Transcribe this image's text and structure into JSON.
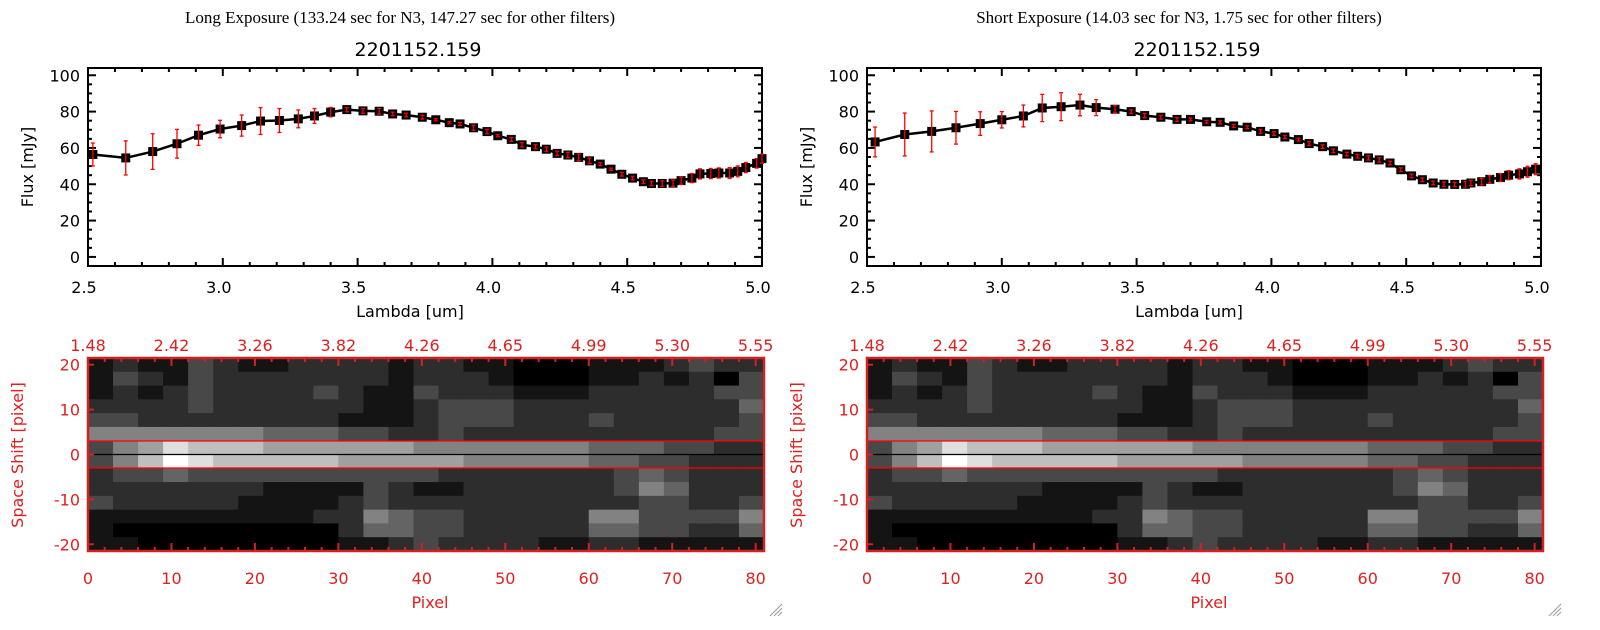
{
  "colors": {
    "axis_top": "#000000",
    "axis_bottom": "#d42020",
    "errorbar": "#ff0000",
    "marker": "#000000",
    "slit_line": "#ff0000"
  },
  "chart_data": [
    {
      "type": "line",
      "title": "Long Exposure (133.24 sec for N3, 147.27 sec for other filters)",
      "object": "2201152.159",
      "xlabel": "Lambda [um]",
      "ylabel": "Flux [mJy]",
      "xlim": [
        2.5,
        5.0
      ],
      "ylim": [
        -5,
        104
      ],
      "xticks": [
        "2.5",
        "3.0",
        "3.5",
        "4.0",
        "4.5",
        "5.0"
      ],
      "yticks": [
        "0",
        "20",
        "40",
        "60",
        "80",
        "100"
      ],
      "x": [
        2.518,
        2.64,
        2.74,
        2.83,
        2.91,
        2.99,
        3.07,
        3.14,
        3.21,
        3.28,
        3.34,
        3.4,
        3.46,
        3.52,
        3.58,
        3.63,
        3.68,
        3.74,
        3.79,
        3.84,
        3.88,
        3.93,
        3.98,
        4.02,
        4.07,
        4.11,
        4.16,
        4.2,
        4.24,
        4.28,
        4.32,
        4.36,
        4.4,
        4.44,
        4.48,
        4.52,
        4.56,
        4.59,
        4.63,
        4.67,
        4.7,
        4.74,
        4.77,
        4.81,
        4.84,
        4.88,
        4.91,
        4.94,
        4.98,
        5.0
      ],
      "y": [
        56.4,
        54.5,
        58,
        62.3,
        67,
        70.4,
        72.3,
        74.8,
        75.1,
        76,
        77.6,
        79.7,
        81.1,
        80.4,
        80.2,
        78.7,
        78.1,
        76.9,
        75.5,
        73.9,
        73.2,
        71.1,
        69,
        66.7,
        64.7,
        61.7,
        60.7,
        59.3,
        57,
        56.1,
        54.8,
        52.9,
        51.1,
        48.3,
        45.5,
        43.4,
        41.4,
        40.4,
        40.4,
        40.6,
        42,
        43.4,
        45.7,
        45.9,
        46.2,
        46.2,
        47.1,
        49.2,
        51.5,
        54.1
      ],
      "yerr": [
        6.3,
        9.4,
        9.8,
        7.9,
        5.6,
        4.8,
        5.8,
        7.4,
        6.6,
        4.9,
        4.1,
        2.6,
        1.2,
        1.3,
        1.5,
        1,
        1,
        1,
        0.6,
        0.6,
        0.8,
        1.4,
        1.2,
        0.6,
        1,
        1.2,
        1.2,
        1.2,
        1.2,
        1.5,
        1.8,
        1.5,
        0.8,
        0.6,
        1,
        1,
        1,
        1.2,
        1.5,
        1.8,
        2,
        2.5,
        2.8,
        2.8,
        2.8,
        3,
        3,
        2.8,
        2.6,
        2.5
      ]
    },
    {
      "type": "line",
      "title": "Short Exposure (14.03 sec for N3, 1.75 sec for other filters)",
      "object": "2201152.159",
      "xlabel": "Lambda [um]",
      "ylabel": "Flux [mJy]",
      "xlim": [
        2.5,
        5.0
      ],
      "ylim": [
        -5,
        104
      ],
      "xticks": [
        "2.5",
        "3.0",
        "3.5",
        "4.0",
        "4.5",
        "5.0"
      ],
      "yticks": [
        "0",
        "20",
        "40",
        "60",
        "80",
        "100"
      ],
      "x": [
        2.53,
        2.64,
        2.74,
        2.83,
        2.92,
        3.0,
        3.08,
        3.15,
        3.22,
        3.29,
        3.35,
        3.42,
        3.48,
        3.53,
        3.59,
        3.65,
        3.7,
        3.76,
        3.81,
        3.86,
        3.91,
        3.96,
        4.01,
        4.05,
        4.1,
        4.14,
        4.19,
        4.23,
        4.28,
        4.32,
        4.36,
        4.4,
        4.44,
        4.48,
        4.52,
        4.56,
        4.6,
        4.64,
        4.68,
        4.72,
        4.74,
        4.78,
        4.81,
        4.85,
        4.88,
        4.92,
        4.95,
        4.98
      ],
      "y": [
        63.3,
        67.4,
        69.1,
        71.1,
        73.4,
        75.5,
        77.6,
        82,
        82.7,
        83.6,
        82.2,
        81.3,
        80,
        77.8,
        76.9,
        75.7,
        75.7,
        74.4,
        74.1,
        72.1,
        71.4,
        69.1,
        67.9,
        66,
        64.6,
        62.4,
        60.7,
        58.4,
        56.6,
        55.4,
        54.5,
        53.4,
        51.7,
        48,
        44.6,
        42.5,
        40.7,
        40,
        39.9,
        40,
        40.7,
        41.4,
        42.7,
        43.7,
        45,
        45.7,
        46.9,
        48.3
      ],
      "yerr": [
        8.2,
        11.8,
        11.3,
        9,
        6.5,
        4.5,
        6,
        7.5,
        7.7,
        5.9,
        4.4,
        2,
        1,
        1.2,
        1,
        1,
        0.8,
        0.8,
        0.8,
        0.8,
        0.8,
        1,
        1,
        0.8,
        0.8,
        1,
        1,
        1,
        1,
        1,
        1.2,
        1.2,
        1,
        1,
        1,
        1,
        1,
        1.2,
        1.2,
        1.5,
        1.5,
        1.8,
        2,
        2.2,
        2.5,
        2.8,
        3,
        3
      ]
    },
    {
      "type": "heatmap",
      "xlabel": "Pixel",
      "ylabel": "Space Shift [pixel]",
      "xlim": [
        0,
        81
      ],
      "ylim": [
        -21.5,
        21.5
      ],
      "xticks": [
        "0",
        "10",
        "20",
        "30",
        "40",
        "50",
        "60",
        "70",
        "80"
      ],
      "yticks": [
        "-20",
        "-10",
        "0",
        "10",
        "20"
      ],
      "top_xticks": [
        "1.48",
        "2.42",
        "3.26",
        "3.82",
        "4.26",
        "4.65",
        "4.99",
        "5.30",
        "5.55"
      ],
      "aperture_lines": [
        -3,
        3
      ],
      "center_line": 0,
      "intensity_max": 9,
      "rows_top_to_bottom": [
        [
          1,
          2,
          1,
          1,
          3,
          2,
          1,
          1,
          2,
          2,
          2,
          2,
          1,
          2,
          2,
          1,
          1,
          0,
          0,
          0,
          1,
          1,
          1,
          2,
          3,
          2,
          2
        ],
        [
          1,
          3,
          2,
          1,
          3,
          2,
          2,
          2,
          2,
          2,
          2,
          2,
          1,
          2,
          2,
          2,
          1,
          0,
          0,
          0,
          1,
          1,
          2,
          1,
          2,
          0,
          3
        ],
        [
          1,
          2,
          1,
          2,
          3,
          2,
          2,
          2,
          2,
          3,
          2,
          1,
          1,
          3,
          2,
          2,
          2,
          1,
          1,
          1,
          2,
          2,
          2,
          2,
          2,
          3,
          3
        ],
        [
          2,
          2,
          2,
          2,
          3,
          2,
          2,
          2,
          2,
          2,
          2,
          1,
          1,
          2,
          3,
          3,
          3,
          2,
          2,
          2,
          2,
          2,
          2,
          2,
          2,
          2,
          4
        ],
        [
          3,
          3,
          2,
          2,
          2,
          2,
          2,
          2,
          2,
          2,
          1,
          1,
          1,
          2,
          3,
          3,
          3,
          2,
          2,
          2,
          3,
          2,
          2,
          2,
          2,
          2,
          3
        ],
        [
          5,
          5,
          5,
          5,
          5,
          5,
          5,
          4,
          4,
          4,
          3,
          3,
          2,
          2,
          3,
          2,
          2,
          2,
          2,
          2,
          2,
          2,
          2,
          2,
          2,
          3,
          3
        ],
        [
          3,
          5,
          6,
          8,
          7,
          7,
          7,
          6,
          6,
          6,
          6,
          6,
          6,
          5,
          5,
          5,
          5,
          5,
          5,
          5,
          4,
          4,
          4,
          3,
          3,
          2,
          2
        ],
        [
          3,
          5,
          7,
          9,
          8,
          7,
          7,
          7,
          7,
          7,
          6,
          6,
          6,
          6,
          6,
          5,
          5,
          5,
          5,
          5,
          4,
          4,
          3,
          3,
          2,
          2,
          2
        ],
        [
          2,
          3,
          3,
          4,
          3,
          3,
          3,
          3,
          3,
          3,
          3,
          3,
          3,
          3,
          2,
          2,
          2,
          2,
          2,
          2,
          2,
          3,
          4,
          3,
          2,
          2,
          2
        ],
        [
          2,
          2,
          2,
          2,
          2,
          2,
          2,
          1,
          1,
          1,
          1,
          3,
          2,
          1,
          1,
          2,
          2,
          2,
          2,
          2,
          2,
          3,
          5,
          4,
          2,
          2,
          2
        ],
        [
          3,
          2,
          2,
          2,
          2,
          2,
          1,
          1,
          1,
          1,
          2,
          3,
          2,
          2,
          2,
          2,
          2,
          2,
          2,
          2,
          2,
          2,
          3,
          3,
          2,
          2,
          3
        ],
        [
          1,
          1,
          1,
          1,
          1,
          1,
          1,
          1,
          1,
          2,
          2,
          5,
          4,
          3,
          3,
          2,
          2,
          2,
          2,
          2,
          5,
          5,
          3,
          3,
          3,
          3,
          5
        ],
        [
          1,
          0,
          0,
          0,
          0,
          0,
          0,
          0,
          0,
          0,
          2,
          4,
          4,
          3,
          3,
          2,
          2,
          2,
          2,
          2,
          4,
          4,
          3,
          3,
          2,
          2,
          4
        ],
        [
          1,
          1,
          0,
          0,
          0,
          0,
          0,
          0,
          0,
          0,
          1,
          1,
          2,
          3,
          2,
          2,
          2,
          2,
          1,
          1,
          2,
          2,
          1,
          1,
          1,
          1,
          1
        ]
      ]
    }
  ]
}
